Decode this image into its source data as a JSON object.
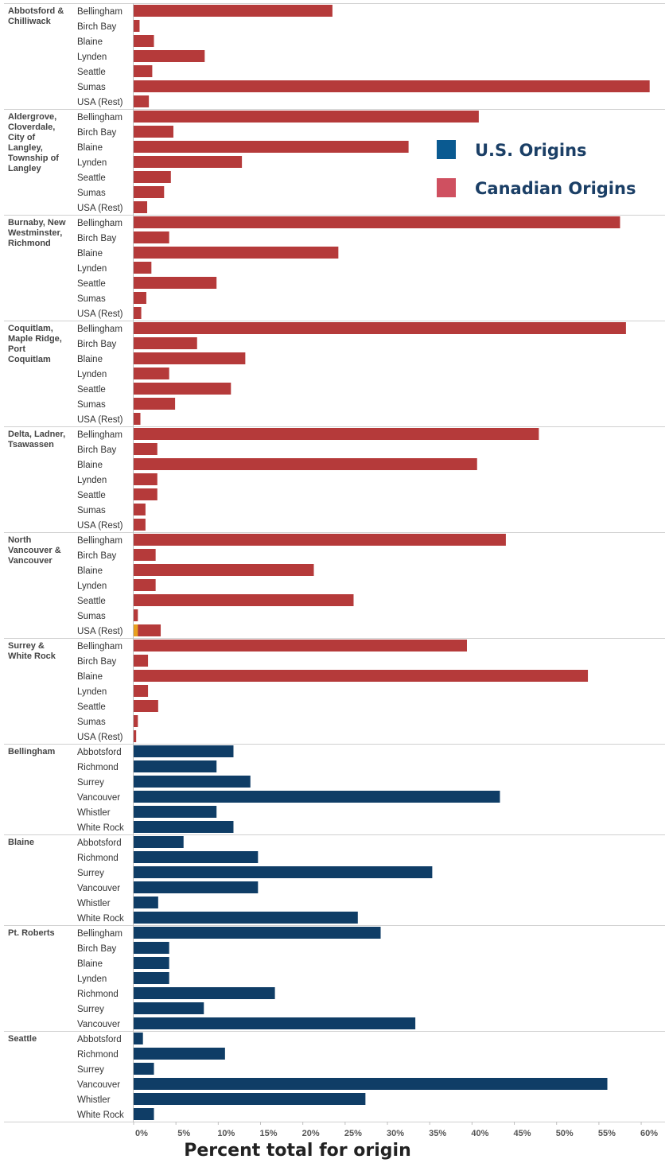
{
  "chart_data": {
    "type": "bar",
    "orientation": "horizontal",
    "xlabel": "Percent total for origin",
    "xlim": [
      0,
      61.5
    ],
    "xticks": [
      "0%",
      "5%",
      "10%",
      "15%",
      "20%",
      "25%",
      "30%",
      "35%",
      "40%",
      "45%",
      "50%",
      "55%",
      "60%"
    ],
    "legend": {
      "position": "top-right",
      "items": [
        {
          "label": "U.S. Origins",
          "color": "#0a5a91"
        },
        {
          "label": "Canadian Origins",
          "color": "#cf5060"
        }
      ]
    },
    "colors": {
      "canadian_bar": "#b53a3a",
      "us_bar": "#0f3d66",
      "highlight": "#e8a020"
    },
    "groups": [
      {
        "label": "Abbotsford &\nChilliwack",
        "origin": "canadian",
        "rows": [
          {
            "category": "Bellingham",
            "value": 23.5
          },
          {
            "category": "Birch Bay",
            "value": 0.7
          },
          {
            "category": "Blaine",
            "value": 2.4
          },
          {
            "category": "Lynden",
            "value": 8.4
          },
          {
            "category": "Seattle",
            "value": 2.2
          },
          {
            "category": "Sumas",
            "value": 61.0
          },
          {
            "category": "USA (Rest)",
            "value": 1.8
          }
        ]
      },
      {
        "label": "Aldergrove,\nCloverdale,\nCity of\nLangley,\nTownship of\nLangley",
        "origin": "canadian",
        "rows": [
          {
            "category": "Bellingham",
            "value": 40.8
          },
          {
            "category": "Birch Bay",
            "value": 4.7
          },
          {
            "category": "Blaine",
            "value": 32.5
          },
          {
            "category": "Lynden",
            "value": 12.8
          },
          {
            "category": "Seattle",
            "value": 4.4
          },
          {
            "category": "Sumas",
            "value": 3.6
          },
          {
            "category": "USA (Rest)",
            "value": 1.6
          }
        ]
      },
      {
        "label": "Burnaby, New\nWestminster,\nRichmond",
        "origin": "canadian",
        "rows": [
          {
            "category": "Bellingham",
            "value": 57.5
          },
          {
            "category": "Birch Bay",
            "value": 4.2
          },
          {
            "category": "Blaine",
            "value": 24.2
          },
          {
            "category": "Lynden",
            "value": 2.1
          },
          {
            "category": "Seattle",
            "value": 9.8
          },
          {
            "category": "Sumas",
            "value": 1.5
          },
          {
            "category": "USA (Rest)",
            "value": 0.9
          }
        ]
      },
      {
        "label": "Coquitlam,\nMaple Ridge,\nPort\nCoquitlam",
        "origin": "canadian",
        "rows": [
          {
            "category": "Bellingham",
            "value": 58.2
          },
          {
            "category": "Birch Bay",
            "value": 7.5
          },
          {
            "category": "Blaine",
            "value": 13.2
          },
          {
            "category": "Lynden",
            "value": 4.2
          },
          {
            "category": "Seattle",
            "value": 11.5
          },
          {
            "category": "Sumas",
            "value": 4.9
          },
          {
            "category": "USA (Rest)",
            "value": 0.8
          }
        ]
      },
      {
        "label": "Delta, Ladner,\nTsawassen",
        "origin": "canadian",
        "rows": [
          {
            "category": "Bellingham",
            "value": 47.9
          },
          {
            "category": "Birch Bay",
            "value": 2.8
          },
          {
            "category": "Blaine",
            "value": 40.6
          },
          {
            "category": "Lynden",
            "value": 2.8
          },
          {
            "category": "Seattle",
            "value": 2.8
          },
          {
            "category": "Sumas",
            "value": 1.4
          },
          {
            "category": "USA (Rest)",
            "value": 1.4
          }
        ]
      },
      {
        "label": "North\nVancouver &\nVancouver",
        "origin": "canadian",
        "rows": [
          {
            "category": "Bellingham",
            "value": 44.0
          },
          {
            "category": "Birch Bay",
            "value": 2.6
          },
          {
            "category": "Blaine",
            "value": 21.3
          },
          {
            "category": "Lynden",
            "value": 2.6
          },
          {
            "category": "Seattle",
            "value": 26.0
          },
          {
            "category": "Sumas",
            "value": 0.5
          },
          {
            "category": "USA (Rest)",
            "value": 3.2,
            "highlight": 0.5
          }
        ]
      },
      {
        "label": "Surrey &\nWhite Rock",
        "origin": "canadian",
        "rows": [
          {
            "category": "Bellingham",
            "value": 39.4
          },
          {
            "category": "Birch Bay",
            "value": 1.7
          },
          {
            "category": "Blaine",
            "value": 53.7
          },
          {
            "category": "Lynden",
            "value": 1.7
          },
          {
            "category": "Seattle",
            "value": 2.9
          },
          {
            "category": "Sumas",
            "value": 0.5
          },
          {
            "category": "USA (Rest)",
            "value": 0.3
          }
        ]
      },
      {
        "label": "Bellingham",
        "origin": "us",
        "rows": [
          {
            "category": "Abbotsford",
            "value": 11.8
          },
          {
            "category": "Richmond",
            "value": 9.8
          },
          {
            "category": "Surrey",
            "value": 13.8
          },
          {
            "category": "Vancouver",
            "value": 43.3
          },
          {
            "category": "Whistler",
            "value": 9.8
          },
          {
            "category": "White Rock",
            "value": 11.8
          }
        ]
      },
      {
        "label": "Blaine",
        "origin": "us",
        "rows": [
          {
            "category": "Abbotsford",
            "value": 5.9
          },
          {
            "category": "Richmond",
            "value": 14.7
          },
          {
            "category": "Surrey",
            "value": 35.3
          },
          {
            "category": "Vancouver",
            "value": 14.7
          },
          {
            "category": "Whistler",
            "value": 2.9
          },
          {
            "category": "White Rock",
            "value": 26.5
          }
        ]
      },
      {
        "label": "Pt. Roberts",
        "origin": "us",
        "rows": [
          {
            "category": "Bellingham",
            "value": 29.2
          },
          {
            "category": "Birch Bay",
            "value": 4.2
          },
          {
            "category": "Blaine",
            "value": 4.2
          },
          {
            "category": "Lynden",
            "value": 4.2
          },
          {
            "category": "Richmond",
            "value": 16.7
          },
          {
            "category": "Surrey",
            "value": 8.3
          },
          {
            "category": "Vancouver",
            "value": 33.3
          }
        ]
      },
      {
        "label": "Seattle",
        "origin": "us",
        "rows": [
          {
            "category": "Abbotsford",
            "value": 1.1
          },
          {
            "category": "Richmond",
            "value": 10.8
          },
          {
            "category": "Surrey",
            "value": 2.4
          },
          {
            "category": "Vancouver",
            "value": 56.0
          },
          {
            "category": "Whistler",
            "value": 27.4
          },
          {
            "category": "White Rock",
            "value": 2.4
          }
        ]
      }
    ]
  }
}
